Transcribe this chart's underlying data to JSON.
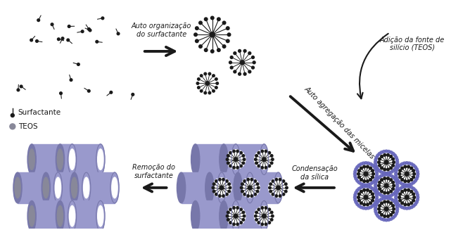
{
  "bg_color": "#ffffff",
  "fig_width": 6.41,
  "fig_height": 3.27,
  "dpi": 100,
  "surfactant_color": "#1a1a1a",
  "micelle_color": "#1a1a1a",
  "tube_color": "#9999cc",
  "tube_dark": "#7777aa",
  "tube_shadow": "#bbbbdd",
  "arrow_color": "#1a1a1a",
  "text_color": "#1a1a1a",
  "teos_color": "#5555aa",
  "silica_dot_color": "#6666bb",
  "labels": {
    "surfactant": "Surfactante",
    "teos": "TEOS",
    "step1": "Auto organização\ndo surfactante",
    "step2": "Adição da fonte de\nsilício (TEOS)",
    "step3": "Auto agregação das micelas",
    "step4": "Condensação\nda sílica",
    "step5": "Remoção do\nsurfactante"
  }
}
